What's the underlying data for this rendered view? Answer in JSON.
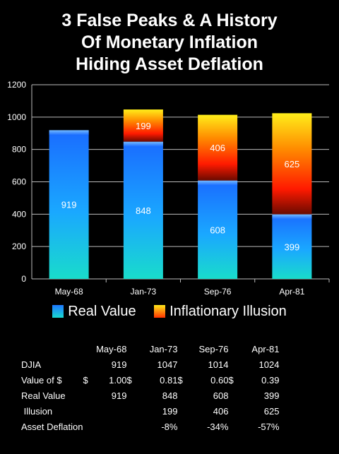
{
  "title_lines": [
    "3 False Peaks & A History",
    "Of Monetary Inflation",
    "Hiding Asset Deflation"
  ],
  "chart_data": {
    "type": "bar",
    "stacked": true,
    "categories": [
      "May-68",
      "Jan-73",
      "Sep-76",
      "Apr-81"
    ],
    "series": [
      {
        "name": "Real Value",
        "values": [
          919,
          848,
          608,
          399
        ],
        "color": "#1e78ff"
      },
      {
        "name": "Inflationary Illusion",
        "values": [
          0,
          199,
          406,
          625
        ],
        "color": "#ff2a00"
      }
    ],
    "totals": [
      919,
      1047,
      1014,
      1024
    ],
    "ylim": [
      0,
      1200
    ],
    "yticks": [
      0,
      200,
      400,
      600,
      800,
      1000,
      1200
    ],
    "grid": true,
    "legend": "bottom",
    "data_labels": [
      {
        "category": "May-68",
        "series": "Real Value",
        "text": "919"
      },
      {
        "category": "Jan-73",
        "series": "Real Value",
        "text": "848"
      },
      {
        "category": "Jan-73",
        "series": "Inflationary Illusion",
        "text": "199"
      },
      {
        "category": "Sep-76",
        "series": "Real Value",
        "text": "608"
      },
      {
        "category": "Sep-76",
        "series": "Inflationary Illusion",
        "text": "406"
      },
      {
        "category": "Apr-81",
        "series": "Real Value",
        "text": "399"
      },
      {
        "category": "Apr-81",
        "series": "Inflationary Illusion",
        "text": "625"
      }
    ]
  },
  "legend": {
    "real": "Real Value",
    "illusion": "Inflationary Illusion"
  },
  "table": {
    "headers": [
      "May-68",
      "Jan-73",
      "Sep-76",
      "Apr-81"
    ],
    "rows": [
      {
        "label": "DJIA",
        "cells": [
          "919",
          "1047",
          "1014",
          "1024"
        ]
      },
      {
        "label": "Value of $",
        "currency": "$",
        "cells": [
          "1.00",
          "0.81",
          "0.60",
          "0.39"
        ]
      },
      {
        "label": "Real Value",
        "cells": [
          "919",
          "848",
          "608",
          "399"
        ]
      },
      {
        "label": " Illusion",
        "cells": [
          "",
          "199",
          "406",
          "625"
        ]
      },
      {
        "label": "Asset Deflation",
        "cells": [
          "",
          "-8%",
          "-34%",
          "-57%"
        ]
      }
    ]
  }
}
